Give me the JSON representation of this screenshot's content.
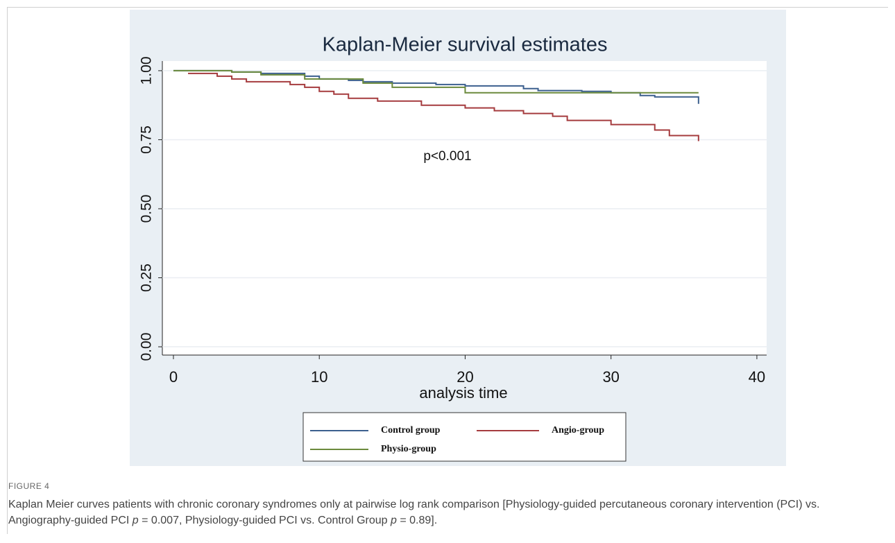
{
  "chart_data": {
    "type": "line",
    "step": true,
    "title": "Kaplan-Meier survival estimates",
    "x_label": "analysis time",
    "annotation": "p<0.001",
    "xlim": [
      -0.76,
      40.67
    ],
    "ylim": [
      -0.03,
      1.035
    ],
    "xticks": [
      0,
      10,
      20,
      30,
      40
    ],
    "yticks": [
      {
        "value": 0,
        "label": "0.00"
      },
      {
        "value": 0.25,
        "label": "0.25"
      },
      {
        "value": 0.5,
        "label": "0.50"
      },
      {
        "value": 0.75,
        "label": "0.75"
      },
      {
        "value": 1,
        "label": "1.00"
      }
    ],
    "grid": true,
    "series": [
      {
        "name": "Control group",
        "color": "#3b5f8e",
        "x": [
          0,
          4,
          6,
          9,
          10,
          12,
          13,
          15,
          18,
          20,
          24,
          25,
          28,
          30,
          32,
          33,
          36,
          36
        ],
        "values": [
          1.0,
          0.995,
          0.99,
          0.98,
          0.97,
          0.965,
          0.96,
          0.955,
          0.95,
          0.945,
          0.935,
          0.928,
          0.925,
          0.92,
          0.91,
          0.905,
          0.9,
          0.88
        ]
      },
      {
        "name": "Angio-group",
        "color": "#a53b3e",
        "x": [
          1,
          3,
          4,
          5,
          8,
          9,
          10,
          11,
          12,
          14,
          17,
          20,
          22,
          24,
          26,
          27,
          30,
          33,
          34,
          36
        ],
        "values": [
          0.99,
          0.98,
          0.97,
          0.96,
          0.95,
          0.94,
          0.925,
          0.915,
          0.9,
          0.89,
          0.875,
          0.865,
          0.855,
          0.845,
          0.835,
          0.82,
          0.805,
          0.785,
          0.765,
          0.745
        ]
      },
      {
        "name": "Physio-group",
        "color": "#6b8a3c",
        "x": [
          0,
          4,
          6,
          9,
          13,
          15,
          20,
          36
        ],
        "values": [
          1.0,
          0.995,
          0.985,
          0.97,
          0.955,
          0.94,
          0.92,
          0.92
        ]
      }
    ]
  },
  "figure_label": "FIGURE 4",
  "caption": [
    "Kaplan Meier curves patients with chronic coronary syndromes only at pairwise log rank comparison [Physiology-guided percutaneous coronary intervention (PCI) vs. Angiography-guided PCI ",
    "p",
    " = 0.007, Physiology-guided PCI vs. Control Group ",
    "p",
    " = 0.89]."
  ]
}
